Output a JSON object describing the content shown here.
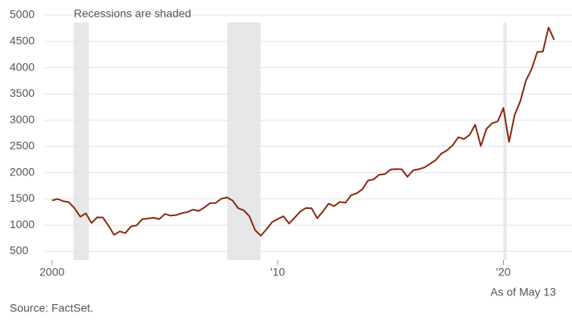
{
  "chart_data": {
    "type": "line",
    "annotation": "Recessions are shaded",
    "note": "As of May 13",
    "source": "Source: FactSet.",
    "color": "#8b2a12",
    "recession_color": "#e6e7e9",
    "recessions": [
      [
        2000.95,
        2001.63
      ],
      [
        2007.76,
        2009.24
      ],
      [
        2020.0,
        2020.14
      ]
    ],
    "x": [
      2000,
      2000.25,
      2000.5,
      2000.75,
      2001,
      2001.25,
      2001.5,
      2001.75,
      2002,
      2002.25,
      2002.5,
      2002.75,
      2003,
      2003.25,
      2003.5,
      2003.75,
      2004,
      2004.25,
      2004.5,
      2004.75,
      2005,
      2005.25,
      2005.5,
      2005.75,
      2006,
      2006.25,
      2006.5,
      2006.75,
      2007,
      2007.25,
      2007.5,
      2007.75,
      2008,
      2008.25,
      2008.5,
      2008.75,
      2009,
      2009.25,
      2009.5,
      2009.75,
      2010,
      2010.25,
      2010.5,
      2010.75,
      2011,
      2011.25,
      2011.5,
      2011.75,
      2012,
      2012.25,
      2012.5,
      2012.75,
      2013,
      2013.25,
      2013.5,
      2013.75,
      2014,
      2014.25,
      2014.5,
      2014.75,
      2015,
      2015.25,
      2015.5,
      2015.75,
      2016,
      2016.25,
      2016.5,
      2016.75,
      2017,
      2017.25,
      2017.5,
      2017.75,
      2018,
      2018.25,
      2018.5,
      2018.75,
      2019,
      2019.25,
      2019.5,
      2019.75,
      2020,
      2020.25,
      2020.5,
      2020.75,
      2021,
      2021.25,
      2021.5,
      2021.75,
      2022,
      2022.25
    ],
    "values": [
      1469,
      1499,
      1455,
      1436,
      1320,
      1160,
      1224,
      1040,
      1148,
      1147,
      990,
      815,
      880,
      848,
      975,
      996,
      1112,
      1126,
      1141,
      1114,
      1212,
      1181,
      1191,
      1228,
      1248,
      1295,
      1270,
      1336,
      1418,
      1421,
      1503,
      1527,
      1468,
      1322,
      1280,
      1166,
      903,
      798,
      919,
      1057,
      1115,
      1169,
      1031,
      1141,
      1258,
      1326,
      1321,
      1131,
      1258,
      1408,
      1362,
      1441,
      1426,
      1569,
      1606,
      1682,
      1848,
      1872,
      1960,
      1972,
      2059,
      2068,
      2063,
      1920,
      2044,
      2065,
      2099,
      2168,
      2239,
      2363,
      2423,
      2519,
      2674,
      2641,
      2718,
      2914,
      2507,
      2834,
      2942,
      2977,
      3231,
      2585,
      3100,
      3363,
      3756,
      3973,
      4298,
      4308,
      4766,
      4530
    ],
    "xlim": [
      1999.65,
      2022.4
    ],
    "xticks": [
      {
        "value": 2000,
        "label": "2000"
      },
      {
        "value": 2010,
        "label": "'10"
      },
      {
        "value": 2020,
        "label": "'20"
      }
    ],
    "ylim": [
      332,
      5000
    ],
    "yticks": [
      500,
      1000,
      1500,
      2000,
      2500,
      3000,
      3500,
      4000,
      4500,
      5000
    ],
    "grid": true
  }
}
